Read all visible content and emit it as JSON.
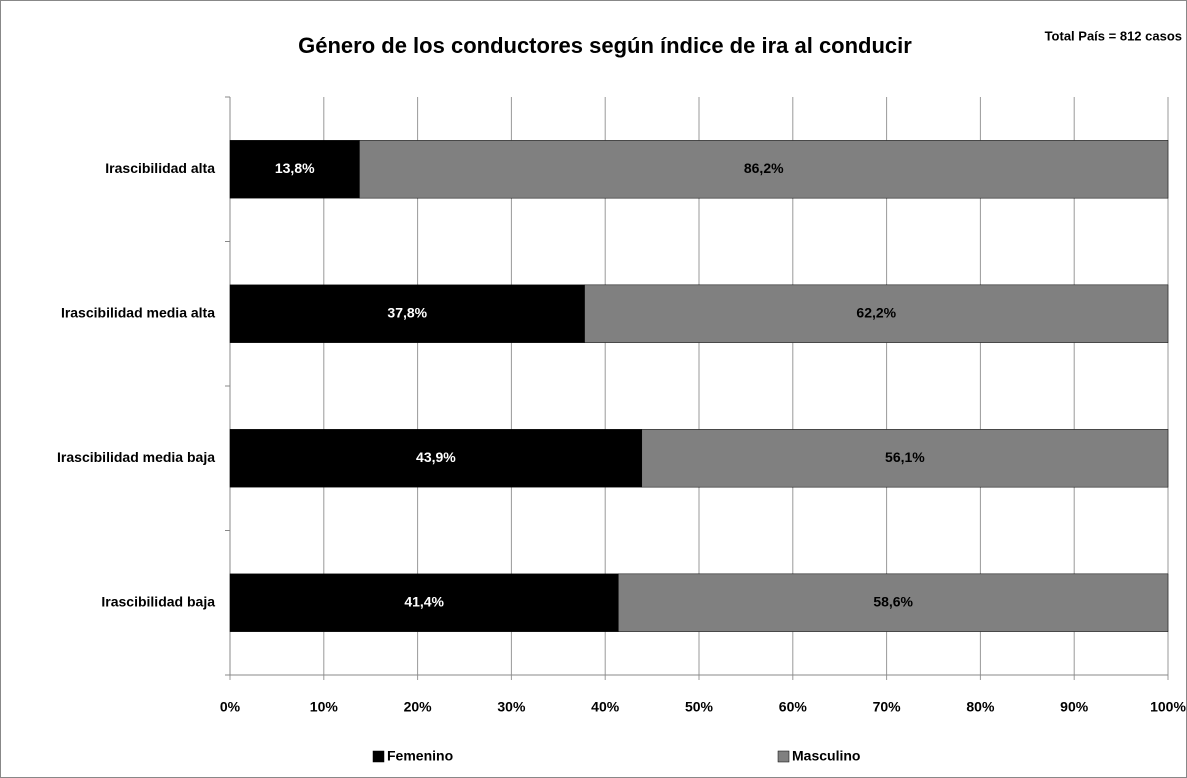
{
  "chart_data": {
    "type": "stacked_barh",
    "title": "Género de los conductores según índice de ira al conducir",
    "annotation": "Total País = 812 casos",
    "categories": [
      "Irascibilidad alta",
      "Irascibilidad media alta",
      "Irascibilidad media baja",
      "Irascibilidad baja"
    ],
    "series": [
      {
        "name": "Femenino",
        "color": "#000000",
        "values": [
          13.8,
          37.8,
          43.9,
          41.4
        ],
        "value_labels": [
          "13,8%",
          "37,8%",
          "43,9%",
          "41,4%"
        ]
      },
      {
        "name": "Masculino",
        "color": "#808080",
        "values": [
          86.2,
          62.2,
          56.1,
          58.6
        ],
        "value_labels": [
          "86,2%",
          "62,2%",
          "56,1%",
          "58,6%"
        ]
      }
    ],
    "xlim": [
      0,
      100
    ],
    "xticks": [
      {
        "value": 0,
        "label": "0%"
      },
      {
        "value": 10,
        "label": "10%"
      },
      {
        "value": 20,
        "label": "20%"
      },
      {
        "value": 30,
        "label": "30%"
      },
      {
        "value": 40,
        "label": "40%"
      },
      {
        "value": 50,
        "label": "50%"
      },
      {
        "value": 60,
        "label": "60%"
      },
      {
        "value": 70,
        "label": "70%"
      },
      {
        "value": 80,
        "label": "80%"
      },
      {
        "value": 90,
        "label": "90%"
      },
      {
        "value": 100,
        "label": "100%"
      }
    ],
    "grid": true,
    "legend": "bottom"
  }
}
